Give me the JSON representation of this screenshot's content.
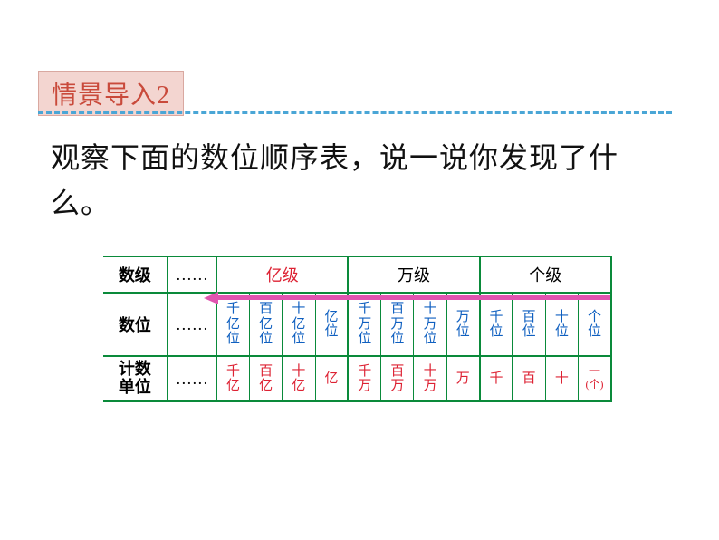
{
  "title": "情景导入2",
  "body": "观察下面的数位顺序表，说一说你发现了什么。",
  "row_labels": {
    "level": "数级",
    "place": "数位",
    "unit": "计数\n单位"
  },
  "ellipsis": "……",
  "groups": {
    "yi": "亿级",
    "wan": "万级",
    "ge": "个级"
  },
  "places": {
    "qianyi": "千亿位",
    "baiyi": "百亿位",
    "shiyi": "十亿位",
    "yi": "亿位",
    "qianwan": "千万位",
    "baiwan": "百万位",
    "shiwan": "十万位",
    "wan": "万位",
    "qian": "千位",
    "bai": "百位",
    "shi": "十位",
    "ge": "个位"
  },
  "units": {
    "qianyi": "千亿",
    "baiyi": "百亿",
    "shiyi": "十亿",
    "yi": "亿",
    "qianwan": "千万",
    "baiwan": "百万",
    "shiwan": "十万",
    "wan": "万",
    "qian": "千",
    "bai": "百",
    "shi": "十",
    "ge": "一\n(个)"
  },
  "colors": {
    "title_bg": "#f3d5d0",
    "title_text": "#c94a3b",
    "dash": "#4aa6d6",
    "table_line": "#0a8a3a",
    "blue": "#1060c0",
    "red": "#d23",
    "arrow": "#e055b0"
  }
}
